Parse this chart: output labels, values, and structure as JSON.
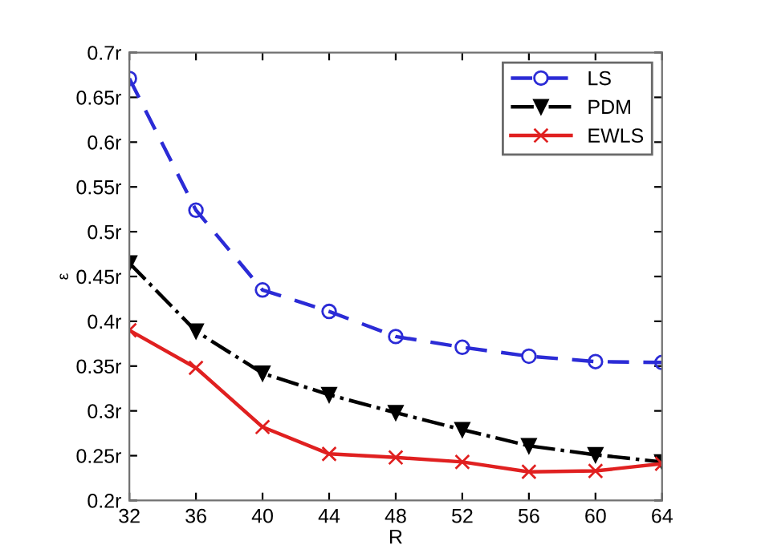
{
  "chart_data": {
    "type": "line",
    "xlabel": "R",
    "ylabel": "ε",
    "x": [
      32,
      36,
      40,
      44,
      48,
      52,
      56,
      60,
      64
    ],
    "series": [
      {
        "name": "LS",
        "color": "#2b2bd6",
        "marker": "circle",
        "line_style": "dashed",
        "values": [
          0.671,
          0.524,
          0.435,
          0.411,
          0.383,
          0.371,
          0.361,
          0.355,
          0.354
        ]
      },
      {
        "name": "PDM",
        "color": "#000000",
        "marker": "triangle",
        "line_style": "dashdot",
        "values": [
          0.465,
          0.389,
          0.342,
          0.318,
          0.298,
          0.279,
          0.261,
          0.251,
          0.243
        ]
      },
      {
        "name": "EWLS",
        "color": "#e02020",
        "marker": "cross",
        "line_style": "solid",
        "values": [
          0.39,
          0.348,
          0.282,
          0.252,
          0.248,
          0.243,
          0.232,
          0.233,
          0.241
        ]
      }
    ],
    "xlim": [
      32,
      64
    ],
    "xticks": [
      32,
      36,
      40,
      44,
      48,
      52,
      56,
      60,
      64
    ],
    "ylim": [
      0.2,
      0.7
    ],
    "yticks": [
      {
        "value": 0.2,
        "label": "0.2r"
      },
      {
        "value": 0.25,
        "label": "0.25r"
      },
      {
        "value": 0.3,
        "label": "0.3r"
      },
      {
        "value": 0.35,
        "label": "0.35r"
      },
      {
        "value": 0.4,
        "label": "0.4r"
      },
      {
        "value": 0.45,
        "label": "0.45r"
      },
      {
        "value": 0.5,
        "label": "0.5r"
      },
      {
        "value": 0.55,
        "label": "0.55r"
      },
      {
        "value": 0.6,
        "label": "0.6r"
      },
      {
        "value": 0.65,
        "label": "0.65r"
      },
      {
        "value": 0.7,
        "label": "0.7r"
      }
    ],
    "grid": false,
    "legend": "top right"
  }
}
